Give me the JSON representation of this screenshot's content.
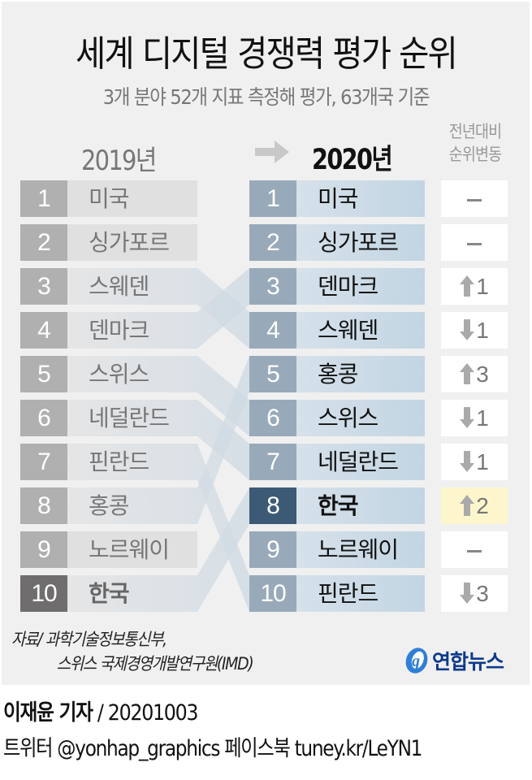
{
  "header": {
    "title": "세계 디지털 경쟁력 평가 순위",
    "subtitle": "3개 분야 52개 지표 측정해 평가, 63개국 기준"
  },
  "columns": {
    "left_year": "2019년",
    "right_year": "2020년",
    "change_line1": "전년대비",
    "change_line2": "순위변동"
  },
  "ranking_2019": [
    {
      "rank": "1",
      "country": "미국"
    },
    {
      "rank": "2",
      "country": "싱가포르"
    },
    {
      "rank": "3",
      "country": "스웨덴"
    },
    {
      "rank": "4",
      "country": "덴마크"
    },
    {
      "rank": "5",
      "country": "스위스"
    },
    {
      "rank": "6",
      "country": "네덜란드"
    },
    {
      "rank": "7",
      "country": "핀란드"
    },
    {
      "rank": "8",
      "country": "홍콩"
    },
    {
      "rank": "9",
      "country": "노르웨이"
    },
    {
      "rank": "10",
      "country": "한국"
    }
  ],
  "ranking_2020": [
    {
      "rank": "1",
      "country": "미국",
      "dir": "none",
      "change": ""
    },
    {
      "rank": "2",
      "country": "싱가포르",
      "dir": "none",
      "change": ""
    },
    {
      "rank": "3",
      "country": "덴마크",
      "dir": "up",
      "change": "1"
    },
    {
      "rank": "4",
      "country": "스웨덴",
      "dir": "down",
      "change": "1"
    },
    {
      "rank": "5",
      "country": "홍콩",
      "dir": "up",
      "change": "3"
    },
    {
      "rank": "6",
      "country": "스위스",
      "dir": "down",
      "change": "1"
    },
    {
      "rank": "7",
      "country": "네덜란드",
      "dir": "down",
      "change": "1"
    },
    {
      "rank": "8",
      "country": "한국",
      "dir": "up",
      "change": "2"
    },
    {
      "rank": "9",
      "country": "노르웨이",
      "dir": "none",
      "change": ""
    },
    {
      "rank": "10",
      "country": "핀란드",
      "dir": "down",
      "change": "3"
    }
  ],
  "highlight_country": "한국",
  "footer": {
    "source_line1": "자료/ 과학기술정보통신부,",
    "source_line2": "스위스 국제경영개발연구원(IMD)",
    "logo_text": "연합뉴스",
    "reporter": "이재윤 기자",
    "date": " / 20201003",
    "social": "트위터 @yonhap_graphics  페이스북 tuney.kr/LeYN1"
  },
  "colors": {
    "panel_bg": "#f0f0f0",
    "left_rank": "#b0b0b0",
    "left_name": "#e0e0e0",
    "left_highlight_rank": "#6f6d6d",
    "right_rank": "#98a9ba",
    "right_name": "#c2d5e3",
    "right_highlight_rank": "#3c5a75",
    "change_highlight": "#fdf6cc",
    "logo_blue": "#0d3a8a"
  },
  "chart_data": {
    "type": "table",
    "title": "세계 디지털 경쟁력 평가 순위",
    "subtitle": "3개 분야 52개 지표 측정해 평가, 63개국 기준",
    "columns": [
      "2019년 순위",
      "2019년 국가",
      "2020년 순위",
      "2020년 국가",
      "전년대비 순위변동"
    ],
    "rows": [
      [
        1,
        "미국",
        1,
        "미국",
        0
      ],
      [
        2,
        "싱가포르",
        2,
        "싱가포르",
        0
      ],
      [
        3,
        "스웨덴",
        3,
        "덴마크",
        1
      ],
      [
        4,
        "덴마크",
        4,
        "스웨덴",
        -1
      ],
      [
        5,
        "스위스",
        5,
        "홍콩",
        3
      ],
      [
        6,
        "네덜란드",
        6,
        "스위스",
        -1
      ],
      [
        7,
        "핀란드",
        7,
        "네덜란드",
        -1
      ],
      [
        8,
        "홍콩",
        8,
        "한국",
        2
      ],
      [
        9,
        "노르웨이",
        9,
        "노르웨이",
        0
      ],
      [
        10,
        "한국",
        10,
        "핀란드",
        -3
      ]
    ],
    "source": "과학기술정보통신부, 스위스 국제경영개발연구원(IMD)"
  }
}
